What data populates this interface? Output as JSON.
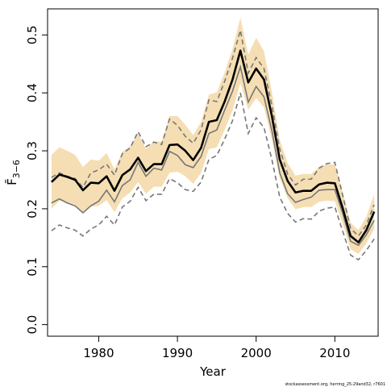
{
  "chart_data": {
    "type": "line",
    "xlabel": "Year",
    "ylabel": "F̄",
    "ylabel_sub": "3−6",
    "xlim": [
      1973.5,
      2015.5
    ],
    "ylim": [
      -0.02,
      0.545
    ],
    "x_ticks": [
      1980,
      1990,
      2000,
      2010
    ],
    "y_ticks": [
      0.0,
      0.1,
      0.2,
      0.3,
      0.4,
      0.5
    ],
    "y_tick_labels": [
      "0.0",
      "0.1",
      "0.2",
      "0.3",
      "0.4",
      "0.5"
    ],
    "colors": {
      "band": "#f5deb3",
      "main_line": "#000000",
      "gray_line": "#777777"
    },
    "x": [
      1974,
      1975,
      1976,
      1977,
      1978,
      1979,
      1980,
      1981,
      1982,
      1983,
      1984,
      1985,
      1986,
      1987,
      1988,
      1989,
      1990,
      1991,
      1992,
      1993,
      1994,
      1995,
      1996,
      1997,
      1998,
      1999,
      2000,
      2001,
      2002,
      2003,
      2004,
      2005,
      2006,
      2007,
      2008,
      2009,
      2010,
      2011,
      2012,
      2013,
      2014,
      2015
    ],
    "series": [
      {
        "role": "estimate",
        "style": "solid-thick",
        "values": [
          0.246,
          0.259,
          0.255,
          0.25,
          0.232,
          0.245,
          0.244,
          0.256,
          0.231,
          0.258,
          0.268,
          0.288,
          0.265,
          0.277,
          0.277,
          0.31,
          0.311,
          0.3,
          0.284,
          0.305,
          0.35,
          0.353,
          0.385,
          0.423,
          0.473,
          0.418,
          0.442,
          0.423,
          0.36,
          0.285,
          0.248,
          0.228,
          0.231,
          0.231,
          0.242,
          0.245,
          0.244,
          0.201,
          0.153,
          0.142,
          0.163,
          0.195
        ]
      },
      {
        "role": "upper_ci",
        "style": "band-edge",
        "values": [
          0.293,
          0.306,
          0.3,
          0.293,
          0.272,
          0.285,
          0.283,
          0.296,
          0.268,
          0.298,
          0.308,
          0.33,
          0.303,
          0.316,
          0.316,
          0.36,
          0.36,
          0.345,
          0.327,
          0.35,
          0.397,
          0.401,
          0.435,
          0.476,
          0.53,
          0.466,
          0.495,
          0.472,
          0.402,
          0.319,
          0.279,
          0.257,
          0.26,
          0.26,
          0.272,
          0.277,
          0.276,
          0.229,
          0.176,
          0.163,
          0.186,
          0.225
        ]
      },
      {
        "role": "lower_ci",
        "style": "band-edge",
        "values": [
          0.2,
          0.214,
          0.211,
          0.207,
          0.192,
          0.204,
          0.205,
          0.215,
          0.194,
          0.218,
          0.228,
          0.246,
          0.226,
          0.238,
          0.238,
          0.262,
          0.264,
          0.256,
          0.243,
          0.262,
          0.303,
          0.306,
          0.336,
          0.37,
          0.417,
          0.371,
          0.391,
          0.375,
          0.319,
          0.253,
          0.218,
          0.199,
          0.203,
          0.203,
          0.212,
          0.214,
          0.213,
          0.174,
          0.13,
          0.122,
          0.14,
          0.165
        ]
      },
      {
        "role": "gray_solid",
        "style": "solid-gray",
        "values": [
          0.21,
          0.217,
          0.21,
          0.205,
          0.193,
          0.205,
          0.213,
          0.232,
          0.212,
          0.24,
          0.25,
          0.28,
          0.256,
          0.27,
          0.267,
          0.299,
          0.292,
          0.276,
          0.271,
          0.29,
          0.33,
          0.336,
          0.37,
          0.403,
          0.445,
          0.384,
          0.411,
          0.393,
          0.335,
          0.262,
          0.226,
          0.211,
          0.216,
          0.22,
          0.232,
          0.233,
          0.233,
          0.192,
          0.144,
          0.137,
          0.155,
          0.18
        ]
      },
      {
        "role": "gray_dashed_upper",
        "style": "dashed-gray",
        "values": [
          0.254,
          0.262,
          0.256,
          0.252,
          0.237,
          0.262,
          0.267,
          0.277,
          0.258,
          0.295,
          0.305,
          0.333,
          0.307,
          0.315,
          0.311,
          0.355,
          0.344,
          0.325,
          0.313,
          0.336,
          0.388,
          0.385,
          0.42,
          0.46,
          0.508,
          0.434,
          0.461,
          0.442,
          0.378,
          0.303,
          0.26,
          0.241,
          0.251,
          0.251,
          0.27,
          0.278,
          0.28,
          0.223,
          0.166,
          0.153,
          0.172,
          0.207
        ]
      },
      {
        "role": "gray_dashed_lower",
        "style": "dashed-gray",
        "values": [
          0.162,
          0.172,
          0.167,
          0.163,
          0.153,
          0.165,
          0.172,
          0.187,
          0.172,
          0.203,
          0.213,
          0.237,
          0.214,
          0.225,
          0.225,
          0.252,
          0.245,
          0.233,
          0.23,
          0.246,
          0.285,
          0.292,
          0.32,
          0.352,
          0.4,
          0.33,
          0.357,
          0.34,
          0.285,
          0.22,
          0.192,
          0.177,
          0.183,
          0.182,
          0.196,
          0.201,
          0.203,
          0.161,
          0.12,
          0.112,
          0.128,
          0.148
        ]
      }
    ]
  },
  "credit": "stockassessment.org, herring_25-29and32, r7601"
}
